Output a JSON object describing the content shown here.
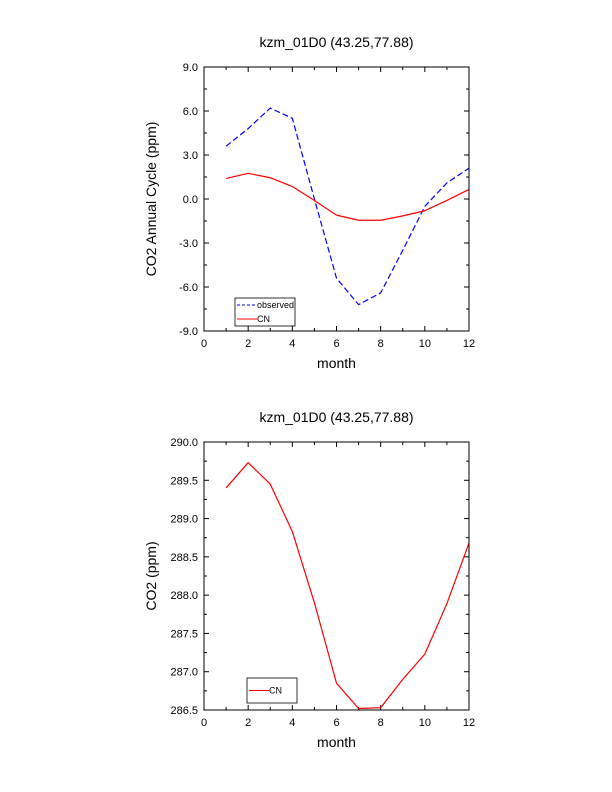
{
  "chart_data": [
    {
      "type": "line",
      "title": "kzm_01D0 (43.25,77.88)",
      "xlabel": "month",
      "ylabel": "CO2 Annual Cycle (ppm)",
      "xlim": [
        0,
        12
      ],
      "ylim": [
        -9.0,
        9.0
      ],
      "xticks": [
        0,
        2,
        4,
        6,
        8,
        10,
        12
      ],
      "yticks": [
        -9.0,
        -6.0,
        -3.0,
        0.0,
        3.0,
        6.0,
        9.0
      ],
      "ytick_labels": [
        "-9.0",
        "-6.0",
        "-3.0",
        "0.0",
        "3.0",
        "6.0",
        "9.0"
      ],
      "grid": false,
      "legend_position": "bottom-left",
      "x": [
        1,
        2,
        3,
        4,
        5,
        6,
        7,
        8,
        9,
        10,
        11,
        12
      ],
      "series": [
        {
          "name": "observed",
          "color": "#0000ff",
          "dash": "dashed",
          "values": [
            3.6,
            4.8,
            6.2,
            5.5,
            0.0,
            -5.4,
            -7.2,
            -6.4,
            -3.5,
            -0.5,
            1.1,
            2.1
          ]
        },
        {
          "name": "CN",
          "color": "#ff0000",
          "dash": "solid",
          "values": [
            1.4,
            1.75,
            1.45,
            0.85,
            -0.1,
            -1.1,
            -1.45,
            -1.45,
            -1.15,
            -0.8,
            -0.1,
            0.65
          ]
        }
      ]
    },
    {
      "type": "line",
      "title": "kzm_01D0 (43.25,77.88)",
      "xlabel": "month",
      "ylabel": "CO2 (ppm)",
      "xlim": [
        0,
        12
      ],
      "ylim": [
        286.5,
        290.0
      ],
      "xticks": [
        0,
        2,
        4,
        6,
        8,
        10,
        12
      ],
      "yticks": [
        286.5,
        287.0,
        287.5,
        288.0,
        288.5,
        289.0,
        289.5,
        290.0
      ],
      "ytick_labels": [
        "286.5",
        "287.0",
        "287.5",
        "288.0",
        "288.5",
        "289.0",
        "289.5",
        "290.0"
      ],
      "grid": false,
      "legend_position": "bottom-left",
      "x": [
        1,
        2,
        3,
        4,
        5,
        6,
        7,
        8,
        9,
        10,
        11,
        12
      ],
      "series": [
        {
          "name": "CN",
          "color": "#ff0000",
          "dash": "solid",
          "values": [
            289.4,
            289.73,
            289.45,
            288.83,
            287.9,
            286.85,
            286.52,
            286.53,
            286.9,
            287.23,
            287.89,
            288.68
          ]
        }
      ]
    }
  ]
}
